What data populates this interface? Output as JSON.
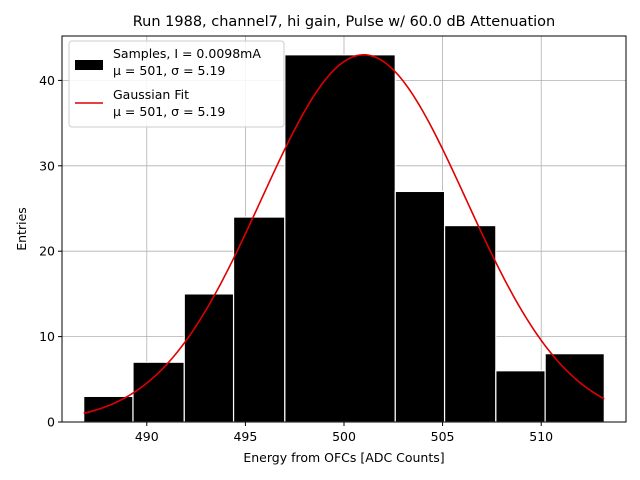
{
  "chart_data": {
    "type": "bar",
    "title": "Run 1988, channel7, hi gain, Pulse w/ 60.0 dB Attenuation",
    "xlabel": "Energy from OFCs [ADC Counts]",
    "ylabel": "Entries",
    "xlim": [
      485.7,
      514.3
    ],
    "ylim": [
      0,
      45.2
    ],
    "grid": true,
    "x_ticks": [
      490,
      495,
      500,
      505,
      510
    ],
    "y_ticks": [
      0,
      10,
      20,
      30,
      40
    ],
    "bins": [
      {
        "left": 486.8,
        "right": 489.3,
        "count": 3
      },
      {
        "left": 489.3,
        "right": 491.9,
        "count": 7
      },
      {
        "left": 491.9,
        "right": 494.4,
        "count": 15
      },
      {
        "left": 494.4,
        "right": 497.0,
        "count": 24
      },
      {
        "left": 497.0,
        "right": 502.6,
        "count": 43
      },
      {
        "left": 502.6,
        "right": 505.1,
        "count": 27
      },
      {
        "left": 505.1,
        "right": 507.7,
        "count": 23
      },
      {
        "left": 507.7,
        "right": 510.2,
        "count": 6
      },
      {
        "left": 510.2,
        "right": 513.2,
        "count": 8
      }
    ],
    "fit": {
      "mu": 501.0,
      "sigma": 5.19,
      "amplitude": 43.0,
      "x_range": [
        486.8,
        513.2
      ]
    },
    "colors": {
      "bars": "#000000",
      "bar_edge": "#ffffff",
      "fit": "#e00000",
      "grid": "#b0b0b0"
    },
    "legend": {
      "position": "top-left",
      "entries": [
        {
          "name": "Samples, I = 0.0098mA",
          "stats": "μ = 501, σ = 5.19"
        },
        {
          "name": "Gaussian Fit",
          "stats": "μ = 501, σ = 5.19"
        }
      ]
    }
  }
}
